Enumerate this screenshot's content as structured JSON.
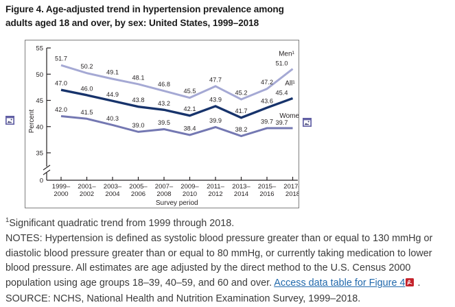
{
  "figure": {
    "title_line1": "Figure 4. Age-adjusted trend in hypertension prevalence among",
    "title_line2": "adults aged 18 and over, by sex: United States, 1999–2018"
  },
  "chart_data": {
    "type": "line",
    "title": "Age-adjusted trend in hypertension prevalence among adults aged 18 and over, by sex",
    "categories": [
      "1999–2000",
      "2001–2002",
      "2003–2004",
      "2005–2006",
      "2007–2008",
      "2009–2010",
      "2011–2012",
      "2013–2014",
      "2015–2016",
      "2017–2018"
    ],
    "series": [
      {
        "name": "Men",
        "end_label": "Men¹",
        "color": "#a5a9d4",
        "values": [
          51.7,
          50.2,
          49.1,
          48.1,
          46.8,
          45.5,
          47.7,
          45.2,
          47.2,
          51.0
        ]
      },
      {
        "name": "All",
        "end_label": "All¹",
        "color": "#17336b",
        "values": [
          47.0,
          46.0,
          44.9,
          43.8,
          43.2,
          42.1,
          43.9,
          41.7,
          43.6,
          45.4
        ]
      },
      {
        "name": "Women",
        "end_label": "Women",
        "color": "#7478b2",
        "values": [
          42.0,
          41.5,
          40.3,
          39.0,
          39.5,
          38.4,
          39.9,
          38.2,
          39.7,
          39.7
        ]
      }
    ],
    "xlabel": "Survey period",
    "ylabel": "Percent",
    "yticks": [
      0,
      35,
      40,
      45,
      50,
      55
    ],
    "ylim_display": [
      35,
      55
    ],
    "axis_break": true,
    "grid": false,
    "legend_position": "line-end-labels",
    "axis_color": "#231f20"
  },
  "icons": {
    "left_placeholder": "broken-image-icon",
    "right_placeholder": "broken-image-icon",
    "placeholder_color": "#615fa4",
    "pdf_icon": "pdf-icon",
    "pdf_color": "#c4232b"
  },
  "footnotes": {
    "fn1_sup": "1",
    "fn1_text": "Significant quadratic trend from 1999 through 2018.",
    "notes_text": "NOTES: Hypertension is defined as systolic blood pressure greater than or equal to 130 mmHg or diastolic blood pressure greater than or equal to 80 mmHg, or currently taking medication to lower blood pressure. All estimates are age adjusted by the direct method to the U.S. Census 2000 population using age groups 18–39, 40–59, and 60 and over. ",
    "link_text": "Access data table for Figure 4",
    "after_link": " .",
    "source_text": "SOURCE: NCHS, National Health and Nutrition Examination Survey, 1999–2018."
  }
}
